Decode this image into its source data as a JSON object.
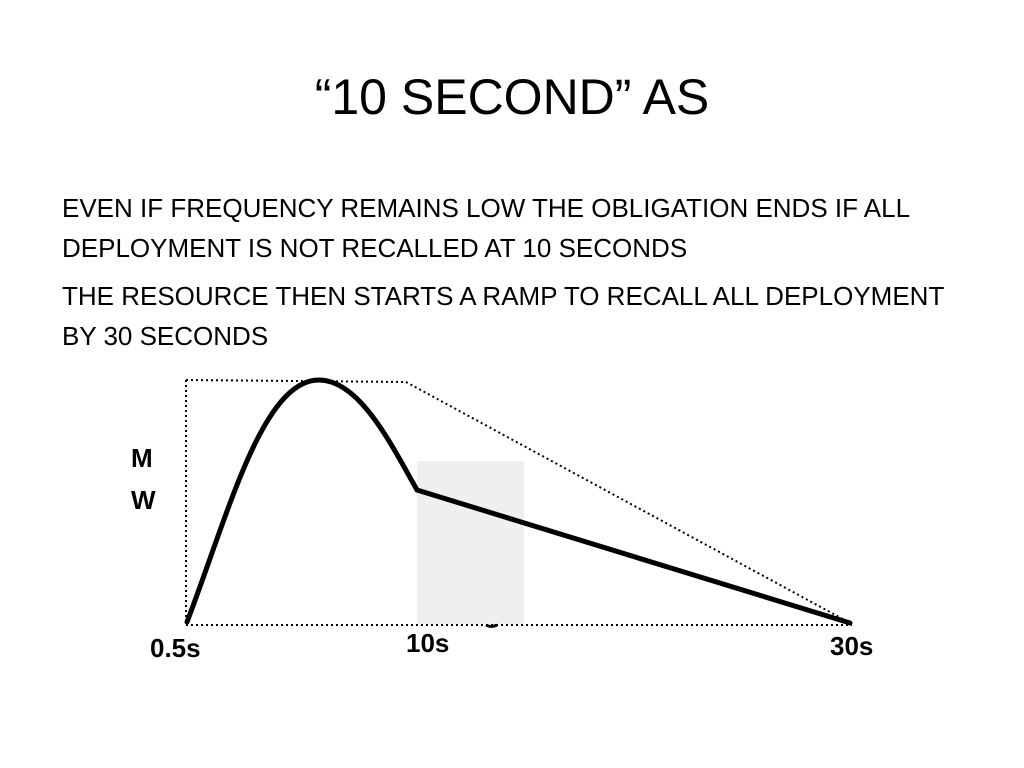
{
  "slide": {
    "title": "“10 SECOND” AS",
    "bullets": [
      "EVEN IF FREQUENCY REMAINS LOW THE OBLIGATION ENDS IF ALL DEPLOYMENT IS NOT RECALLED AT 10 SECONDS",
      "THE RESOURCE THEN STARTS A RAMP TO RECALL ALL DEPLOYMENT BY 30 SECONDS"
    ]
  },
  "diagram": {
    "y_axis_label_line1": "M",
    "y_axis_label_line2": "W",
    "time_labels": {
      "start": "0.5s",
      "mid": "10s",
      "end": "30s"
    },
    "colors": {
      "curve": "#000000",
      "envelope": "#000000",
      "highlight": "#efefef"
    }
  }
}
